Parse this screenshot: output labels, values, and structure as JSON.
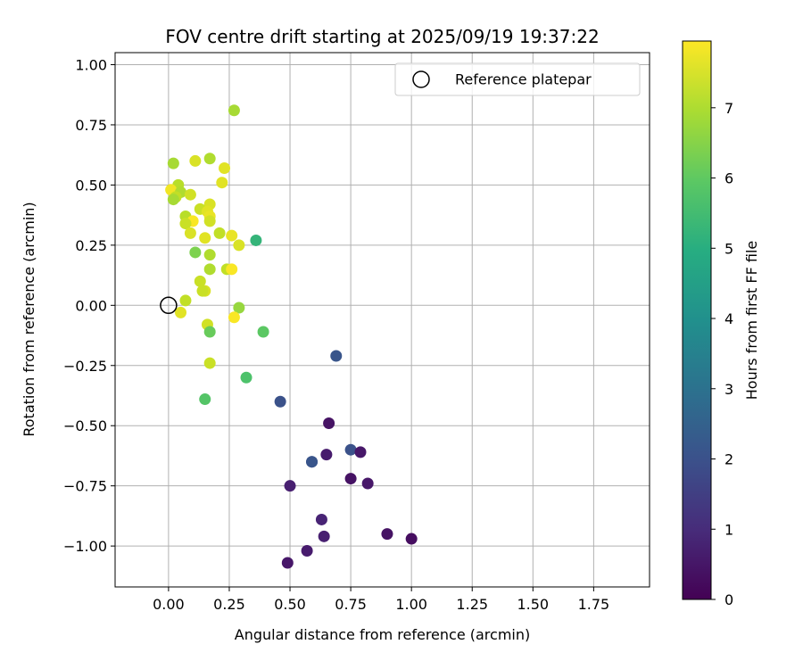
{
  "chart_data": {
    "type": "scatter",
    "title": "FOV centre drift starting at 2025/09/19 19:37:22",
    "xlabel": "Angular distance from reference (arcmin)",
    "ylabel": "Rotation from reference (arcmin)",
    "xlim": [
      -0.22,
      1.98
    ],
    "ylim": [
      -1.17,
      1.05
    ],
    "xticks": [
      0.0,
      0.25,
      0.5,
      0.75,
      1.0,
      1.25,
      1.5,
      1.75
    ],
    "xtick_labels": [
      "0.00",
      "0.25",
      "0.50",
      "0.75",
      "1.00",
      "1.25",
      "1.50",
      "1.75"
    ],
    "yticks": [
      -1.0,
      -0.75,
      -0.5,
      -0.25,
      0.0,
      0.25,
      0.5,
      0.75,
      1.0
    ],
    "ytick_labels": [
      "−1.00",
      "−0.75",
      "−0.50",
      "−0.25",
      "0.00",
      "0.25",
      "0.50",
      "0.75",
      "1.00"
    ],
    "grid": true,
    "legend": {
      "location": "top-right",
      "label": "Reference platepar"
    },
    "reference_point": {
      "x": 0.0,
      "y": 0.0
    },
    "colorbar": {
      "label": "Hours from first FF file",
      "min": 0,
      "max": 7.95,
      "ticks": [
        0,
        1,
        2,
        3,
        4,
        5,
        6,
        7
      ],
      "tick_labels": [
        "0",
        "1",
        "2",
        "3",
        "4",
        "5",
        "6",
        "7"
      ],
      "colormap": "viridis"
    },
    "points": [
      {
        "x": 0.27,
        "y": 0.81,
        "h": 6.9
      },
      {
        "x": 0.02,
        "y": 0.59,
        "h": 6.9
      },
      {
        "x": 0.11,
        "y": 0.6,
        "h": 7.5
      },
      {
        "x": 0.17,
        "y": 0.61,
        "h": 7.0
      },
      {
        "x": 0.23,
        "y": 0.57,
        "h": 7.6
      },
      {
        "x": 0.22,
        "y": 0.51,
        "h": 7.6
      },
      {
        "x": 0.04,
        "y": 0.5,
        "h": 7.1
      },
      {
        "x": 0.01,
        "y": 0.48,
        "h": 7.8
      },
      {
        "x": 0.05,
        "y": 0.47,
        "h": 7.0
      },
      {
        "x": 0.09,
        "y": 0.46,
        "h": 7.4
      },
      {
        "x": 0.03,
        "y": 0.45,
        "h": 7.2
      },
      {
        "x": 0.02,
        "y": 0.44,
        "h": 6.9
      },
      {
        "x": 0.17,
        "y": 0.42,
        "h": 7.5
      },
      {
        "x": 0.13,
        "y": 0.4,
        "h": 7.3
      },
      {
        "x": 0.16,
        "y": 0.39,
        "h": 7.6
      },
      {
        "x": 0.17,
        "y": 0.37,
        "h": 7.7
      },
      {
        "x": 0.07,
        "y": 0.37,
        "h": 7.1
      },
      {
        "x": 0.1,
        "y": 0.35,
        "h": 7.9
      },
      {
        "x": 0.07,
        "y": 0.34,
        "h": 7.3
      },
      {
        "x": 0.17,
        "y": 0.35,
        "h": 7.4
      },
      {
        "x": 0.09,
        "y": 0.3,
        "h": 7.5
      },
      {
        "x": 0.21,
        "y": 0.3,
        "h": 7.2
      },
      {
        "x": 0.15,
        "y": 0.28,
        "h": 7.6
      },
      {
        "x": 0.26,
        "y": 0.29,
        "h": 7.7
      },
      {
        "x": 0.36,
        "y": 0.27,
        "h": 5.2
      },
      {
        "x": 0.29,
        "y": 0.25,
        "h": 7.5
      },
      {
        "x": 0.11,
        "y": 0.22,
        "h": 6.4
      },
      {
        "x": 0.17,
        "y": 0.21,
        "h": 7.0
      },
      {
        "x": 0.24,
        "y": 0.15,
        "h": 7.2
      },
      {
        "x": 0.26,
        "y": 0.15,
        "h": 7.9
      },
      {
        "x": 0.17,
        "y": 0.15,
        "h": 7.0
      },
      {
        "x": 0.13,
        "y": 0.1,
        "h": 7.3
      },
      {
        "x": 0.15,
        "y": 0.06,
        "h": 7.5
      },
      {
        "x": 0.14,
        "y": 0.06,
        "h": 7.3
      },
      {
        "x": 0.07,
        "y": 0.02,
        "h": 7.2
      },
      {
        "x": 0.29,
        "y": -0.01,
        "h": 6.7
      },
      {
        "x": 0.05,
        "y": -0.03,
        "h": 7.6
      },
      {
        "x": 0.27,
        "y": -0.05,
        "h": 7.9
      },
      {
        "x": 0.16,
        "y": -0.08,
        "h": 7.4
      },
      {
        "x": 0.17,
        "y": -0.11,
        "h": 6.1
      },
      {
        "x": 0.39,
        "y": -0.11,
        "h": 5.9
      },
      {
        "x": 0.17,
        "y": -0.24,
        "h": 7.3
      },
      {
        "x": 0.32,
        "y": -0.3,
        "h": 5.7
      },
      {
        "x": 0.15,
        "y": -0.39,
        "h": 5.8
      },
      {
        "x": 0.69,
        "y": -0.21,
        "h": 2.1
      },
      {
        "x": 0.46,
        "y": -0.4,
        "h": 2.0
      },
      {
        "x": 0.66,
        "y": -0.49,
        "h": 0.4
      },
      {
        "x": 0.75,
        "y": -0.6,
        "h": 2.0
      },
      {
        "x": 0.79,
        "y": -0.61,
        "h": 0.5
      },
      {
        "x": 0.65,
        "y": -0.62,
        "h": 0.6
      },
      {
        "x": 0.59,
        "y": -0.65,
        "h": 1.8
      },
      {
        "x": 0.59,
        "y": -0.65,
        "h": 2.1
      },
      {
        "x": 0.5,
        "y": -0.75,
        "h": 0.7
      },
      {
        "x": 0.75,
        "y": -0.72,
        "h": 0.4
      },
      {
        "x": 0.82,
        "y": -0.74,
        "h": 0.5
      },
      {
        "x": 0.63,
        "y": -0.89,
        "h": 0.8
      },
      {
        "x": 0.64,
        "y": -0.96,
        "h": 0.7
      },
      {
        "x": 0.9,
        "y": -0.95,
        "h": 0.4
      },
      {
        "x": 1.0,
        "y": -0.97,
        "h": 0.3
      },
      {
        "x": 0.57,
        "y": -1.02,
        "h": 0.6
      },
      {
        "x": 0.49,
        "y": -1.07,
        "h": 0.5
      }
    ]
  }
}
